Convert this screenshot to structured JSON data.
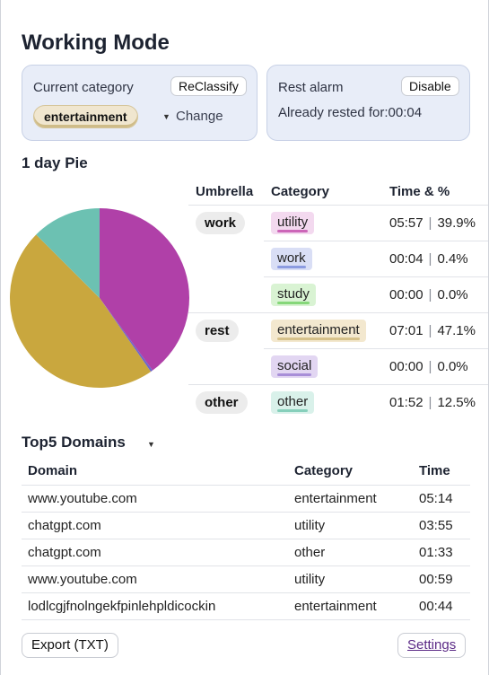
{
  "title": "Working Mode",
  "current_category": {
    "label": "Current category",
    "reclassify_label": "ReClassify",
    "value": "entertainment",
    "change_label": "Change"
  },
  "rest_alarm": {
    "label": "Rest alarm",
    "disable_label": "Disable",
    "rested_text": "Already rested for:00:04"
  },
  "pie_section": {
    "title": "1 day Pie",
    "headers": {
      "umbrella": "Umbrella",
      "category": "Category",
      "time": "Time & %"
    },
    "groups": [
      {
        "umbrella": "work",
        "rows": [
          {
            "category": "utility",
            "time": "05:57",
            "percent": "39.9%",
            "bg": "#f3d9ef",
            "bar": "#cc66b8"
          },
          {
            "category": "work",
            "time": "00:04",
            "percent": "0.4%",
            "bg": "#d9def5",
            "bar": "#8c9be0"
          },
          {
            "category": "study",
            "time": "00:00",
            "percent": "0.0%",
            "bg": "#d9f3d3",
            "bar": "#86d77a"
          }
        ]
      },
      {
        "umbrella": "rest",
        "rows": [
          {
            "category": "entertainment",
            "time": "07:01",
            "percent": "47.1%",
            "bg": "#f3e8cf",
            "bar": "#d6c18a"
          },
          {
            "category": "social",
            "time": "00:00",
            "percent": "0.0%",
            "bg": "#e2d6f2",
            "bar": "#a88ed8"
          }
        ]
      },
      {
        "umbrella": "other",
        "rows": [
          {
            "category": "other",
            "time": "01:52",
            "percent": "12.5%",
            "bg": "#d9f1ea",
            "bar": "#86cfbb"
          }
        ]
      }
    ]
  },
  "chart_data": {
    "type": "pie",
    "slices": [
      {
        "label": "utility",
        "value": 39.9,
        "color": "#b040a8"
      },
      {
        "label": "work",
        "value": 0.4,
        "color": "#6f66c9"
      },
      {
        "label": "study",
        "value": 0.0,
        "color": "#5fbf4a"
      },
      {
        "label": "entertainment",
        "value": 47.1,
        "color": "#c9a73e"
      },
      {
        "label": "social",
        "value": 0.0,
        "color": "#8e6ad1"
      },
      {
        "label": "other",
        "value": 12.5,
        "color": "#6cc1b2"
      }
    ]
  },
  "top_domains": {
    "title": "Top5 Domains",
    "headers": {
      "domain": "Domain",
      "category": "Category",
      "time": "Time"
    },
    "rows": [
      {
        "domain": "www.youtube.com",
        "category": "entertainment",
        "time": "05:14"
      },
      {
        "domain": "chatgpt.com",
        "category": "utility",
        "time": "03:55"
      },
      {
        "domain": "chatgpt.com",
        "category": "other",
        "time": "01:33"
      },
      {
        "domain": "www.youtube.com",
        "category": "utility",
        "time": "00:59"
      },
      {
        "domain": "lodlcgjfnolngekfpinlehpldicockin",
        "category": "entertainment",
        "time": "00:44"
      }
    ]
  },
  "footer": {
    "export_label": "Export (TXT)",
    "settings_label": "Settings"
  }
}
